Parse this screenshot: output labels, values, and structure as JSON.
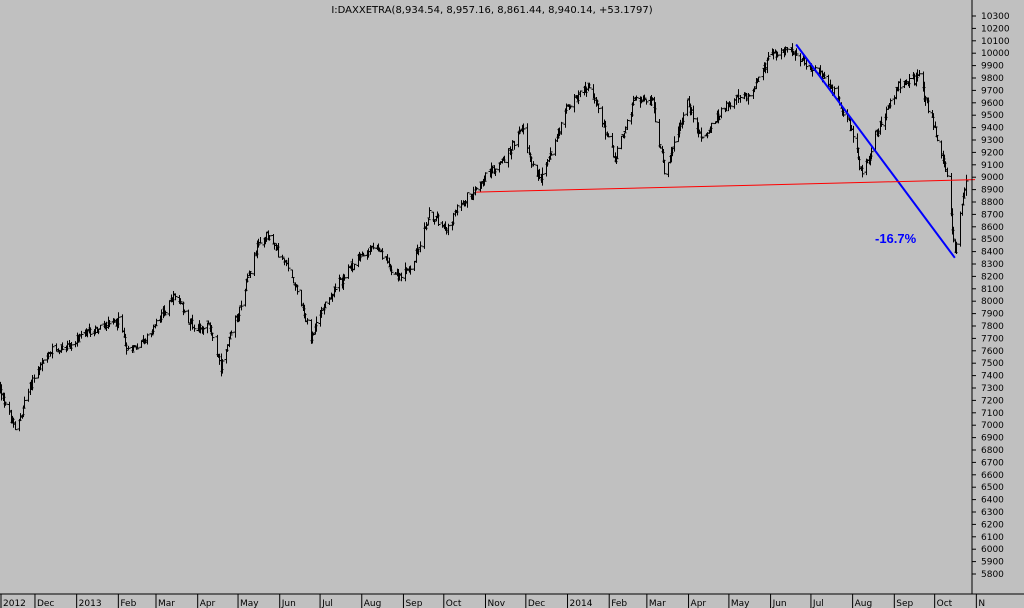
{
  "chart_data": {
    "type": "ohlc",
    "title": "I:DAXXETRA(8,934.54, 8,957.16, 8,861.44, 8,940.14, +53.1797)",
    "ylim": [
      5800,
      10300
    ],
    "y_ticks": [
      5800,
      5900,
      6000,
      6100,
      6200,
      6300,
      6400,
      6500,
      6600,
      6700,
      6800,
      6900,
      7000,
      7100,
      7200,
      7300,
      7400,
      7500,
      7600,
      7700,
      7800,
      7900,
      8000,
      8100,
      8200,
      8300,
      8400,
      8500,
      8600,
      8700,
      8800,
      8900,
      9000,
      9100,
      9200,
      9300,
      9400,
      9500,
      9600,
      9700,
      9800,
      9900,
      10000,
      10100,
      10200,
      10300
    ],
    "x_labels": [
      "2012",
      "Dec",
      "2013",
      "Feb",
      "Mar",
      "Apr",
      "May",
      "Jun",
      "Jul",
      "Aug",
      "Sep",
      "Oct",
      "Nov",
      "Dec",
      "2014",
      "Feb",
      "Mar",
      "Apr",
      "May",
      "Jun",
      "Jul",
      "Aug",
      "Sep",
      "Oct",
      "N"
    ],
    "grid": false,
    "colors": {
      "background": "#c0c0c0",
      "bars": "#000000",
      "trendline": "#0000ff",
      "support": "#ff0000"
    },
    "price_path": [
      [
        "2012-11-05",
        7300
      ],
      [
        "2012-11-16",
        6950
      ],
      [
        "2012-11-30",
        7400
      ],
      [
        "2012-12-14",
        7600
      ],
      [
        "2012-12-28",
        7650
      ],
      [
        "2013-01-10",
        7750
      ],
      [
        "2013-01-24",
        7800
      ],
      [
        "2013-02-01",
        7850
      ],
      [
        "2013-02-08",
        7600
      ],
      [
        "2013-02-22",
        7700
      ],
      [
        "2013-03-15",
        8050
      ],
      [
        "2013-03-28",
        7800
      ],
      [
        "2013-04-10",
        7800
      ],
      [
        "2013-04-18",
        7450
      ],
      [
        "2013-05-02",
        7950
      ],
      [
        "2013-05-14",
        8400
      ],
      [
        "2013-05-22",
        8550
      ],
      [
        "2013-06-05",
        8300
      ],
      [
        "2013-06-14",
        8100
      ],
      [
        "2013-06-24",
        7700
      ],
      [
        "2013-07-05",
        8000
      ],
      [
        "2013-07-26",
        8300
      ],
      [
        "2013-08-09",
        8450
      ],
      [
        "2013-08-28",
        8200
      ],
      [
        "2013-09-06",
        8250
      ],
      [
        "2013-09-20",
        8700
      ],
      [
        "2013-10-04",
        8600
      ],
      [
        "2013-10-14",
        8800
      ],
      [
        "2013-10-31",
        9000
      ],
      [
        "2013-11-15",
        9150
      ],
      [
        "2013-11-29",
        9400
      ],
      [
        "2013-12-05",
        9100
      ],
      [
        "2013-12-13",
        9000
      ],
      [
        "2013-12-31",
        9550
      ],
      [
        "2014-01-17",
        9750
      ],
      [
        "2014-01-28",
        9400
      ],
      [
        "2014-02-05",
        9150
      ],
      [
        "2014-02-21",
        9650
      ],
      [
        "2014-03-05",
        9600
      ],
      [
        "2014-03-14",
        9050
      ],
      [
        "2014-03-31",
        9600
      ],
      [
        "2014-04-11",
        9300
      ],
      [
        "2014-04-30",
        9600
      ],
      [
        "2014-05-15",
        9650
      ],
      [
        "2014-05-30",
        9950
      ],
      [
        "2014-06-10",
        10050
      ],
      [
        "2014-06-30",
        9900
      ],
      [
        "2014-07-15",
        9750
      ],
      [
        "2014-07-31",
        9400
      ],
      [
        "2014-08-08",
        9000
      ],
      [
        "2014-08-20",
        9400
      ],
      [
        "2014-09-05",
        9750
      ],
      [
        "2014-09-19",
        9800
      ],
      [
        "2014-10-02",
        9350
      ],
      [
        "2014-10-10",
        9000
      ],
      [
        "2014-10-16",
        8400
      ],
      [
        "2014-10-24",
        8950
      ]
    ],
    "trendlines": [
      {
        "name": "downtrend",
        "color": "#0000ff",
        "from": [
          "2014-06-20",
          10070
        ],
        "to": [
          "2014-10-16",
          8350
        ]
      },
      {
        "name": "support",
        "color": "#ff0000",
        "from": [
          "2013-10-25",
          8880
        ],
        "to": [
          "2014-10-31",
          8980
        ]
      }
    ],
    "annotations": [
      {
        "text": "-16.7%"
      }
    ]
  }
}
